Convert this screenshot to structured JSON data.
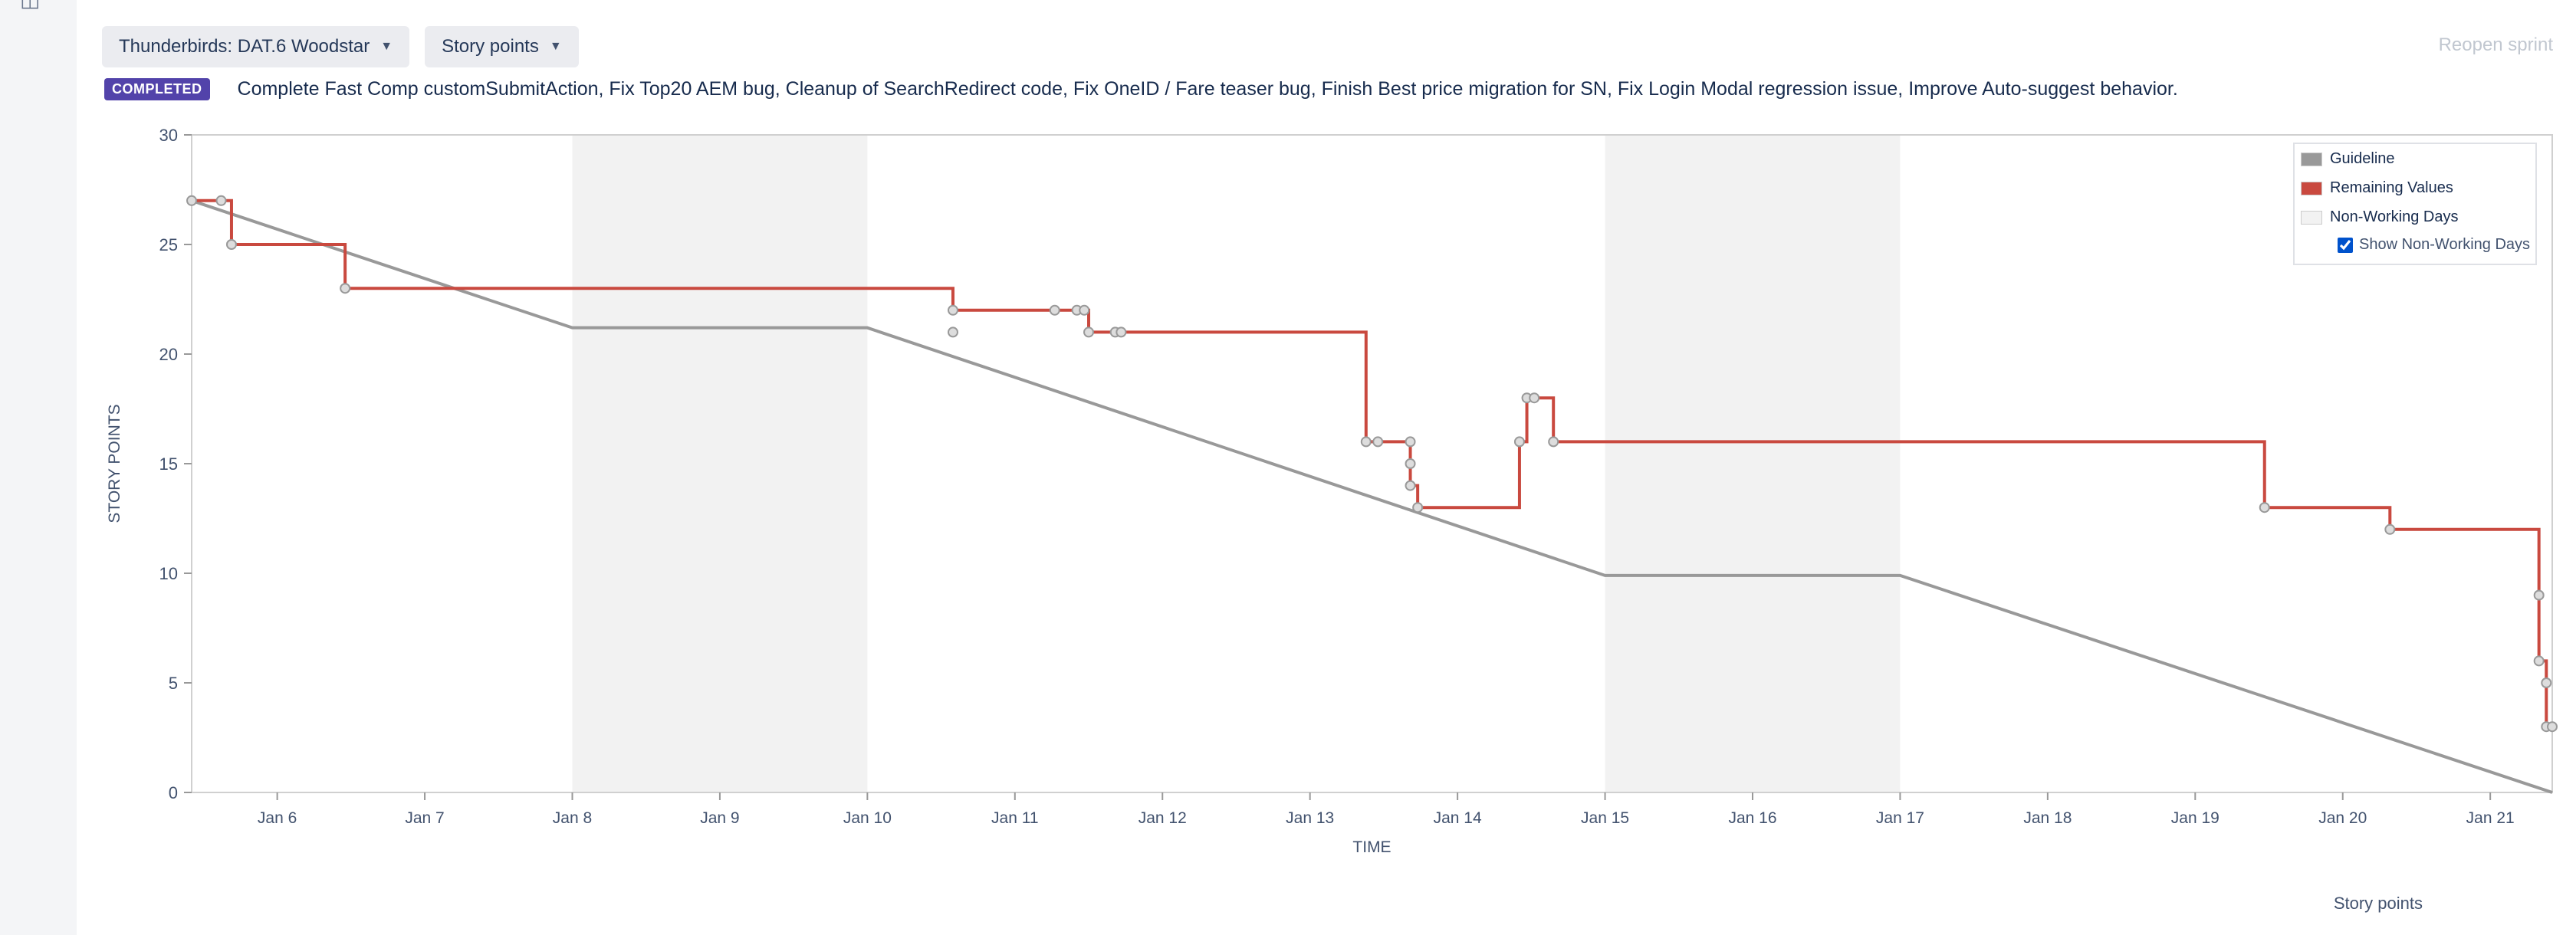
{
  "header": {
    "board_selector": "Thunderbirds: DAT.6 Woodstar",
    "estimation_selector": "Story points",
    "reopen_label": "Reopen sprint"
  },
  "sprint": {
    "status_badge": "COMPLETED",
    "goal": "Complete Fast Comp customSubmitAction, Fix Top20 AEM bug, Cleanup of SearchRedirect code, Fix OneID / Fare teaser bug, Finish Best price migration for SN, Fix Login Modal regression issue, Improve Auto-suggest behavior."
  },
  "footer_label": "Story points",
  "legend": {
    "guideline": "Guideline",
    "remaining": "Remaining Values",
    "non_working": "Non-Working Days",
    "show_non_working": "Show Non-Working Days"
  },
  "colors": {
    "guideline": "#999999",
    "remaining": "#c9493f",
    "non_working": "#f2f2f2",
    "badge": "#5243aa"
  },
  "chart_data": {
    "type": "line",
    "xlabel": "TIME",
    "ylabel": "STORY POINTS",
    "xlim": [
      5.42,
      21.42
    ],
    "ylim": [
      0,
      30
    ],
    "yticks": [
      0,
      5,
      10,
      15,
      20,
      25,
      30
    ],
    "xticks": [
      {
        "x": 6,
        "label": "Jan 6"
      },
      {
        "x": 7,
        "label": "Jan 7"
      },
      {
        "x": 8,
        "label": "Jan 8"
      },
      {
        "x": 9,
        "label": "Jan 9"
      },
      {
        "x": 10,
        "label": "Jan 10"
      },
      {
        "x": 11,
        "label": "Jan 11"
      },
      {
        "x": 12,
        "label": "Jan 12"
      },
      {
        "x": 13,
        "label": "Jan 13"
      },
      {
        "x": 14,
        "label": "Jan 14"
      },
      {
        "x": 15,
        "label": "Jan 15"
      },
      {
        "x": 16,
        "label": "Jan 16"
      },
      {
        "x": 17,
        "label": "Jan 17"
      },
      {
        "x": 18,
        "label": "Jan 18"
      },
      {
        "x": 19,
        "label": "Jan 19"
      },
      {
        "x": 20,
        "label": "Jan 20"
      },
      {
        "x": 21,
        "label": "Jan 21"
      }
    ],
    "non_working_days": [
      [
        8,
        10
      ],
      [
        15,
        17
      ]
    ],
    "guideline": [
      [
        5.42,
        27
      ],
      [
        8,
        21.2
      ],
      [
        10,
        21.2
      ],
      [
        15,
        9.9
      ],
      [
        17,
        9.9
      ],
      [
        21.42,
        0
      ]
    ],
    "remaining": [
      [
        5.42,
        27
      ],
      [
        5.62,
        27
      ],
      [
        5.69,
        27
      ],
      [
        5.69,
        25
      ],
      [
        6.46,
        25
      ],
      [
        6.46,
        23
      ],
      [
        10.58,
        23
      ],
      [
        10.58,
        22
      ],
      [
        11.27,
        22
      ],
      [
        11.42,
        22
      ],
      [
        11.47,
        22
      ],
      [
        11.5,
        22
      ],
      [
        11.5,
        21
      ],
      [
        11.68,
        21
      ],
      [
        11.72,
        21
      ],
      [
        13.38,
        21
      ],
      [
        13.38,
        16
      ],
      [
        13.46,
        16
      ],
      [
        13.68,
        16
      ],
      [
        13.68,
        15
      ],
      [
        13.68,
        14
      ],
      [
        13.73,
        14
      ],
      [
        13.73,
        13
      ],
      [
        14.42,
        13
      ],
      [
        14.42,
        16
      ],
      [
        14.47,
        16
      ],
      [
        14.47,
        18
      ],
      [
        14.52,
        18
      ],
      [
        14.65,
        18
      ],
      [
        14.65,
        16
      ],
      [
        19.47,
        16
      ],
      [
        19.47,
        13
      ],
      [
        20.32,
        13
      ],
      [
        20.32,
        12
      ],
      [
        21.33,
        12
      ],
      [
        21.33,
        9
      ],
      [
        21.33,
        6
      ],
      [
        21.38,
        6
      ],
      [
        21.38,
        5
      ],
      [
        21.38,
        3
      ],
      [
        21.42,
        3
      ]
    ],
    "markers": [
      [
        5.42,
        27
      ],
      [
        5.62,
        27
      ],
      [
        5.69,
        25
      ],
      [
        6.46,
        23
      ],
      [
        10.58,
        22
      ],
      [
        10.58,
        21
      ],
      [
        11.27,
        22
      ],
      [
        11.42,
        22
      ],
      [
        11.47,
        22
      ],
      [
        11.5,
        21
      ],
      [
        11.68,
        21
      ],
      [
        11.72,
        21
      ],
      [
        13.38,
        16
      ],
      [
        13.46,
        16
      ],
      [
        13.68,
        16
      ],
      [
        13.68,
        15
      ],
      [
        13.68,
        14
      ],
      [
        13.73,
        13
      ],
      [
        14.42,
        16
      ],
      [
        14.47,
        18
      ],
      [
        14.52,
        18
      ],
      [
        14.65,
        16
      ],
      [
        19.47,
        13
      ],
      [
        20.32,
        12
      ],
      [
        21.33,
        9
      ],
      [
        21.33,
        6
      ],
      [
        21.38,
        5
      ],
      [
        21.38,
        3
      ],
      [
        21.42,
        3
      ]
    ]
  }
}
